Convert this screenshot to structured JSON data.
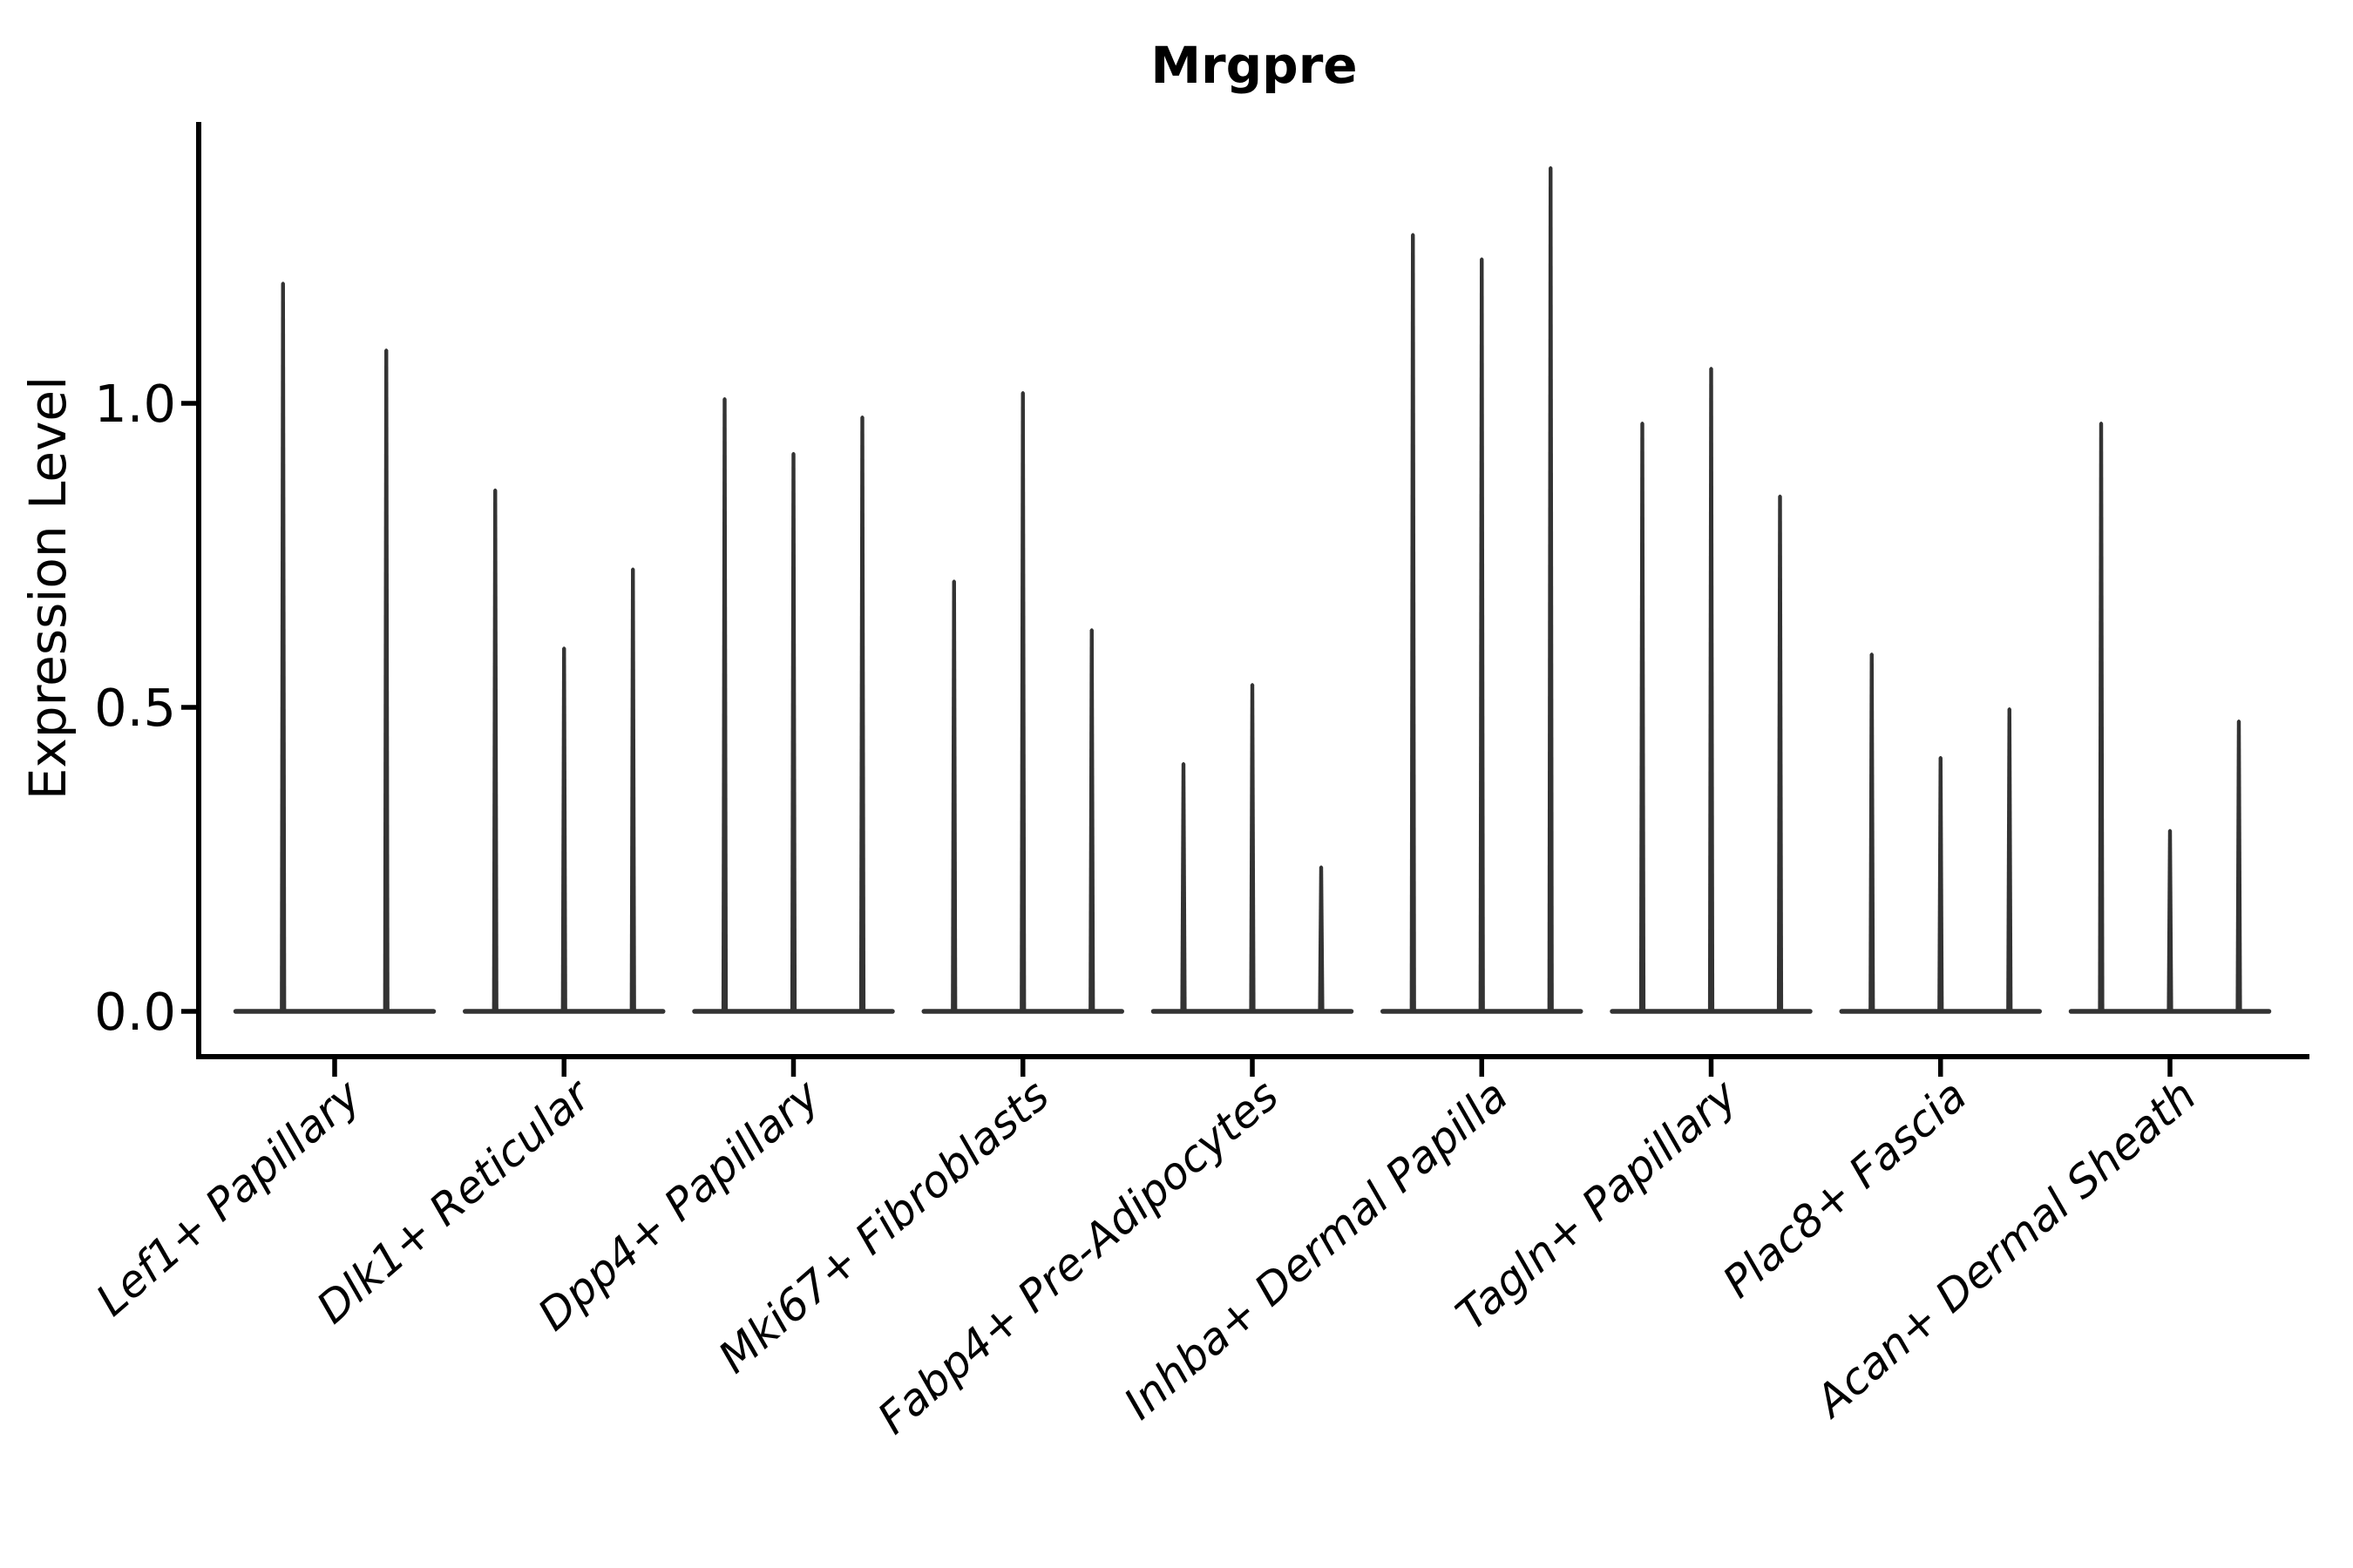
{
  "title": "Mrgpre",
  "colors": {
    "violin": "#333333",
    "axis": "#000000",
    "text": "#000000",
    "background": "#ffffff"
  },
  "chart_data": {
    "type": "violin",
    "title": "Mrgpre",
    "xlabel": "",
    "ylabel": "Expression Level",
    "y_ticks": [
      {
        "label": "0.0",
        "value": 0.0
      },
      {
        "label": "0.5",
        "value": 0.5
      },
      {
        "label": "1.0",
        "value": 1.0
      }
    ],
    "ylim": [
      0,
      1.47
    ],
    "grid": false,
    "legend_position": "none",
    "categories": [
      "Lef1+ Papillary",
      "Dlk1+ Reticular",
      "Dpp4+ Papillary",
      "Mki67+ Fibroblasts",
      "Fabp4+ Pre-Adipocytes",
      "Inhba+ Dermal Papilla",
      "Tagln+ Papillary",
      "Plac8+ Fascia",
      "Acan+ Dermal Sheath"
    ],
    "groups": [
      {
        "label": "Lef1+ Papillary",
        "violin_maxima": [
          1.2,
          1.09
        ]
      },
      {
        "label": "Dlk1+ Reticular",
        "violin_maxima": [
          0.86,
          0.6,
          0.73
        ]
      },
      {
        "label": "Dpp4+ Papillary",
        "violin_maxima": [
          1.01,
          0.92,
          0.98
        ]
      },
      {
        "label": "Mki67+ Fibroblasts",
        "violin_maxima": [
          0.71,
          1.02,
          0.63
        ]
      },
      {
        "label": "Fabp4+ Pre-Adipocytes",
        "violin_maxima": [
          0.41,
          0.54,
          0.24
        ]
      },
      {
        "label": "Inhba+ Dermal Papilla",
        "violin_maxima": [
          1.28,
          1.24,
          1.39
        ]
      },
      {
        "label": "Tagln+ Papillary",
        "violin_maxima": [
          0.97,
          1.06,
          0.85
        ]
      },
      {
        "label": "Plac8+ Fascia",
        "violin_maxima": [
          0.59,
          0.42,
          0.5
        ]
      },
      {
        "label": "Acan+ Dermal Sheath",
        "violin_maxima": [
          0.97,
          0.3,
          0.48
        ]
      }
    ],
    "shape_note": "each violin is concentrated at 0 with a thin tail up to its maximum"
  }
}
